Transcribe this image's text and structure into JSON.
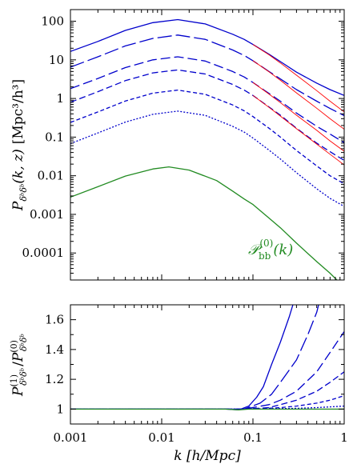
{
  "chart_data": [
    {
      "type": "line",
      "panel": "top",
      "xscale": "log",
      "yscale": "log",
      "xlim": [
        0.001,
        1
      ],
      "ylim": [
        2e-05,
        200
      ],
      "xticks": [
        0.001,
        0.01,
        0.1,
        1
      ],
      "yticks": [
        100,
        10,
        1,
        0.1,
        0.01,
        0.001,
        0.0001
      ],
      "ytick_labels": [
        "100",
        "10",
        "1",
        "0.1",
        "0.01",
        "0.001",
        "0.0001"
      ],
      "ylabel": "P_{δᵇδᵇ}(k, z) [Mpc³/h³]",
      "ylabel_parts": {
        "main": "P",
        "sub": "δᵇδᵇ",
        "args": "(k, z)",
        "unit": "[Mpc³/h³]"
      },
      "annotation": {
        "main": "𝒫",
        "sub": "bb",
        "sup": "(0)",
        "args": "(k)",
        "color": "#228b22"
      },
      "series": [
        {
          "color": "#0000cc",
          "dash": "solid",
          "points": [
            [
              0.001,
              16.5
            ],
            [
              0.002,
              30
            ],
            [
              0.004,
              58
            ],
            [
              0.008,
              92
            ],
            [
              0.015,
              110
            ],
            [
              0.03,
              85
            ],
            [
              0.06,
              46
            ],
            [
              0.08,
              34
            ],
            [
              0.1,
              25
            ],
            [
              0.15,
              14
            ],
            [
              0.2,
              9
            ],
            [
              0.3,
              4.8
            ],
            [
              0.5,
              2.5
            ],
            [
              0.7,
              1.7
            ],
            [
              1,
              1.2
            ]
          ]
        },
        {
          "color": "#0000cc",
          "dash": "long",
          "points": [
            [
              0.001,
              6.5
            ],
            [
              0.002,
              12
            ],
            [
              0.004,
              23
            ],
            [
              0.008,
              36
            ],
            [
              0.015,
              44
            ],
            [
              0.03,
              34
            ],
            [
              0.06,
              18
            ],
            [
              0.08,
              13
            ],
            [
              0.1,
              9.5
            ],
            [
              0.15,
              5
            ],
            [
              0.2,
              3.2
            ],
            [
              0.3,
              1.7
            ],
            [
              0.5,
              0.85
            ],
            [
              0.7,
              0.55
            ],
            [
              1,
              0.36
            ]
          ]
        },
        {
          "color": "#0000cc",
          "dash": "medium",
          "points": [
            [
              0.001,
              1.8
            ],
            [
              0.002,
              3.3
            ],
            [
              0.004,
              6.3
            ],
            [
              0.008,
              10
            ],
            [
              0.015,
              12
            ],
            [
              0.03,
              9.3
            ],
            [
              0.06,
              5
            ],
            [
              0.08,
              3.6
            ],
            [
              0.1,
              2.6
            ],
            [
              0.15,
              1.35
            ],
            [
              0.2,
              0.85
            ],
            [
              0.3,
              0.42
            ],
            [
              0.5,
              0.19
            ],
            [
              0.7,
              0.12
            ],
            [
              1,
              0.072
            ]
          ]
        },
        {
          "color": "#0000cc",
          "dash": "dash",
          "points": [
            [
              0.001,
              0.8
            ],
            [
              0.002,
              1.5
            ],
            [
              0.004,
              2.9
            ],
            [
              0.008,
              4.6
            ],
            [
              0.015,
              5.5
            ],
            [
              0.03,
              4.3
            ],
            [
              0.06,
              2.3
            ],
            [
              0.08,
              1.65
            ],
            [
              0.1,
              1.2
            ],
            [
              0.15,
              0.6
            ],
            [
              0.2,
              0.37
            ],
            [
              0.3,
              0.17
            ],
            [
              0.5,
              0.07
            ],
            [
              0.7,
              0.042
            ],
            [
              1,
              0.025
            ]
          ]
        },
        {
          "color": "#0000cc",
          "dash": "short",
          "points": [
            [
              0.001,
              0.24
            ],
            [
              0.002,
              0.45
            ],
            [
              0.004,
              0.86
            ],
            [
              0.008,
              1.38
            ],
            [
              0.015,
              1.65
            ],
            [
              0.03,
              1.28
            ],
            [
              0.06,
              0.68
            ],
            [
              0.08,
              0.48
            ],
            [
              0.1,
              0.34
            ],
            [
              0.15,
              0.17
            ],
            [
              0.2,
              0.1
            ],
            [
              0.3,
              0.045
            ],
            [
              0.5,
              0.018
            ],
            [
              0.7,
              0.01
            ],
            [
              1,
              0.0062
            ]
          ]
        },
        {
          "color": "#0000cc",
          "dash": "dot",
          "points": [
            [
              0.001,
              0.068
            ],
            [
              0.002,
              0.128
            ],
            [
              0.004,
              0.245
            ],
            [
              0.008,
              0.39
            ],
            [
              0.015,
              0.47
            ],
            [
              0.03,
              0.365
            ],
            [
              0.06,
              0.19
            ],
            [
              0.08,
              0.135
            ],
            [
              0.1,
              0.095
            ],
            [
              0.15,
              0.046
            ],
            [
              0.2,
              0.027
            ],
            [
              0.3,
              0.012
            ],
            [
              0.5,
              0.0046
            ],
            [
              0.7,
              0.0026
            ],
            [
              1,
              0.0016
            ]
          ]
        },
        {
          "color": "#228b22",
          "dash": "solid",
          "points": [
            [
              0.001,
              0.0028
            ],
            [
              0.002,
              0.0052
            ],
            [
              0.004,
              0.0098
            ],
            [
              0.008,
              0.015
            ],
            [
              0.012,
              0.017
            ],
            [
              0.02,
              0.014
            ],
            [
              0.04,
              0.0075
            ],
            [
              0.06,
              0.004
            ],
            [
              0.08,
              0.0025
            ],
            [
              0.1,
              0.0018
            ],
            [
              0.15,
              0.0008
            ],
            [
              0.2,
              0.00045
            ],
            [
              0.3,
              0.00018
            ],
            [
              0.5,
              6e-05
            ],
            [
              0.7,
              3e-05
            ],
            [
              1,
              1.3e-05
            ]
          ]
        },
        {
          "color": "#ff0000",
          "dash": "solid",
          "points": [
            [
              0.1,
              25
            ],
            [
              0.15,
              13.5
            ],
            [
              0.2,
              8.3
            ],
            [
              0.3,
              4
            ],
            [
              0.5,
              1.6
            ],
            [
              0.7,
              0.85
            ],
            [
              1,
              0.45
            ]
          ]
        },
        {
          "color": "#ff0000",
          "dash": "solid",
          "points": [
            [
              0.1,
              9.5
            ],
            [
              0.15,
              4.9
            ],
            [
              0.2,
              2.95
            ],
            [
              0.3,
              1.4
            ],
            [
              0.5,
              0.56
            ],
            [
              0.7,
              0.3
            ],
            [
              1,
              0.16
            ]
          ]
        },
        {
          "color": "#ff0000",
          "dash": "solid",
          "points": [
            [
              0.1,
              2.6
            ],
            [
              0.15,
              1.3
            ],
            [
              0.2,
              0.78
            ],
            [
              0.3,
              0.37
            ],
            [
              0.5,
              0.15
            ],
            [
              0.7,
              0.08
            ],
            [
              1,
              0.043
            ]
          ]
        },
        {
          "color": "#ff0000",
          "dash": "solid",
          "points": [
            [
              0.1,
              1.2
            ],
            [
              0.15,
              0.59
            ],
            [
              0.2,
              0.35
            ],
            [
              0.3,
              0.165
            ],
            [
              0.5,
              0.066
            ],
            [
              0.7,
              0.036
            ],
            [
              1,
              0.019
            ]
          ]
        }
      ]
    },
    {
      "type": "line",
      "panel": "bottom",
      "xscale": "log",
      "yscale": "linear",
      "xlim": [
        0.001,
        1
      ],
      "ylim": [
        0.9,
        1.7
      ],
      "xticks": [
        0.001,
        0.01,
        0.1,
        1
      ],
      "xtick_labels": [
        "0.001",
        "0.01",
        "0.1",
        "1"
      ],
      "yticks": [
        1,
        1.2,
        1.4,
        1.6
      ],
      "ytick_labels": [
        "1",
        "1.2",
        "1.4",
        "1.6"
      ],
      "xlabel": "k [h/Mpc]",
      "ylabel": "P⁽¹⁾_{δᵇδᵇ} / P⁽⁰⁾_{δᵇδᵇ}",
      "ylabel_parts": {
        "main": "P",
        "sup1": "(1)",
        "sup0": "(0)",
        "sub": "δᵇδᵇ",
        "slash": "/"
      },
      "series": [
        {
          "color": "#0000cc",
          "dash": "solid",
          "points": [
            [
              0.001,
              1
            ],
            [
              0.05,
              1
            ],
            [
              0.07,
              0.995
            ],
            [
              0.09,
              1.02
            ],
            [
              0.11,
              1.08
            ],
            [
              0.13,
              1.15
            ],
            [
              0.16,
              1.3
            ],
            [
              0.2,
              1.45
            ],
            [
              0.25,
              1.62
            ],
            [
              0.3,
              1.78
            ]
          ]
        },
        {
          "color": "#0000cc",
          "dash": "long",
          "points": [
            [
              0.001,
              1
            ],
            [
              0.05,
              1
            ],
            [
              0.08,
              1.0
            ],
            [
              0.12,
              1.04
            ],
            [
              0.16,
              1.1
            ],
            [
              0.2,
              1.18
            ],
            [
              0.3,
              1.33
            ],
            [
              0.4,
              1.5
            ],
            [
              0.5,
              1.65
            ],
            [
              0.55,
              1.75
            ]
          ]
        },
        {
          "color": "#0000cc",
          "dash": "medium",
          "points": [
            [
              0.001,
              1
            ],
            [
              0.08,
              1.0
            ],
            [
              0.15,
              1.03
            ],
            [
              0.2,
              1.06
            ],
            [
              0.3,
              1.12
            ],
            [
              0.5,
              1.25
            ],
            [
              0.7,
              1.38
            ],
            [
              1,
              1.52
            ]
          ]
        },
        {
          "color": "#0000cc",
          "dash": "dash",
          "points": [
            [
              0.001,
              1
            ],
            [
              0.08,
              1.0
            ],
            [
              0.15,
              1.01
            ],
            [
              0.2,
              1.03
            ],
            [
              0.3,
              1.06
            ],
            [
              0.5,
              1.12
            ],
            [
              0.7,
              1.18
            ],
            [
              1,
              1.25
            ]
          ]
        },
        {
          "color": "#0000cc",
          "dash": "short",
          "points": [
            [
              0.001,
              1
            ],
            [
              0.1,
              1.0
            ],
            [
              0.2,
              1.01
            ],
            [
              0.3,
              1.02
            ],
            [
              0.5,
              1.04
            ],
            [
              0.7,
              1.06
            ],
            [
              1,
              1.09
            ]
          ]
        },
        {
          "color": "#0000cc",
          "dash": "dot",
          "points": [
            [
              0.001,
              1
            ],
            [
              0.1,
              1.0
            ],
            [
              0.3,
              1.005
            ],
            [
              0.5,
              1.01
            ],
            [
              0.7,
              1.015
            ],
            [
              1,
              1.02
            ]
          ]
        },
        {
          "color": "#228b22",
          "dash": "solid",
          "points": [
            [
              0.001,
              1
            ],
            [
              0.05,
              1
            ],
            [
              0.07,
              0.995
            ],
            [
              0.09,
              1.0
            ],
            [
              1,
              1.0
            ]
          ]
        }
      ]
    }
  ]
}
